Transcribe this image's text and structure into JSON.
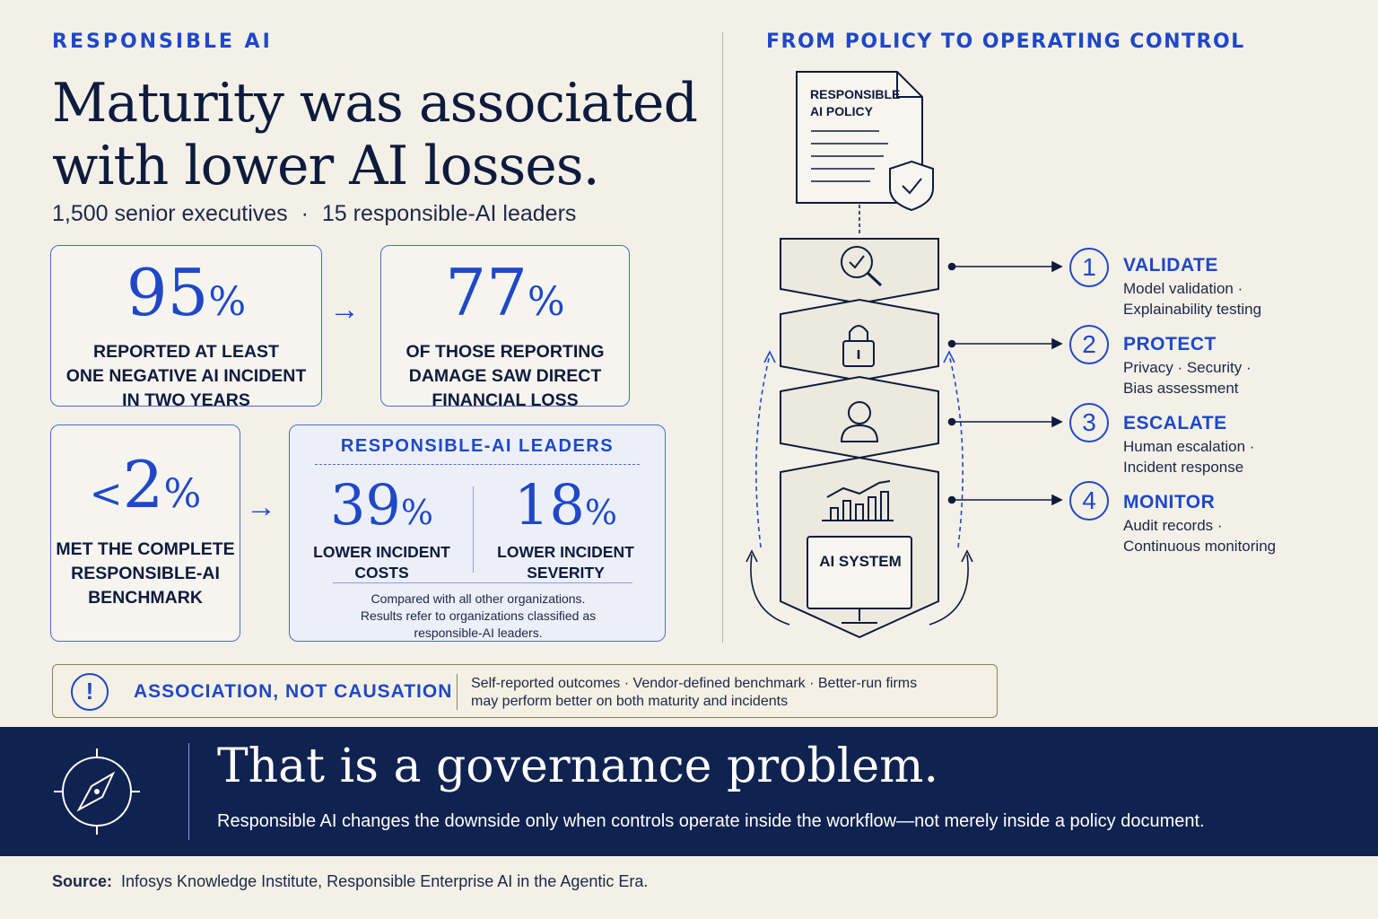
{
  "left": {
    "eyebrow": "RESPONSIBLE AI",
    "headline_line1": "Maturity was associated",
    "headline_line2": "with lower AI losses.",
    "subline_a": "1,500 senior executives",
    "subline_sep": "·",
    "subline_b": "15 responsible-AI leaders"
  },
  "stats": {
    "s1": {
      "value": "95",
      "unit": "%",
      "text_l1": "Reported at least",
      "text_l2": "one negative AI incident",
      "text_l3": "in two years"
    },
    "s2": {
      "value": "77",
      "unit": "%",
      "text_l1": "Of those reporting",
      "text_l2": "damage saw direct",
      "text_l3": "financial loss"
    },
    "s3": {
      "prefix": "<",
      "value": "2",
      "unit": "%",
      "text_l1": "Met the complete",
      "text_l2": "responsible-AI",
      "text_l3": "benchmark"
    }
  },
  "leaders": {
    "title": "RESPONSIBLE-AI LEADERS",
    "a": {
      "value": "39",
      "unit": "%",
      "l1": "Lower incident",
      "l2": "costs"
    },
    "b": {
      "value": "18",
      "unit": "%",
      "l1": "Lower incident",
      "l2": "severity"
    },
    "note_l1": "Compared with all other organizations.",
    "note_l2": "Results refer to organizations classified as",
    "note_l3": "responsible-AI leaders."
  },
  "caution": {
    "icon": "!",
    "title": "ASSOCIATION, NOT CAUSATION",
    "l1": "Self-reported outcomes  ·  Vendor-defined benchmark  ·  Better-run firms",
    "l2": "may perform better on both maturity and incidents"
  },
  "right": {
    "eyebrow": "FROM POLICY TO OPERATING CONTROL",
    "policy_l1": "RESPONSIBLE",
    "policy_l2": "AI POLICY",
    "system_label": "AI SYSTEM",
    "steps": [
      {
        "num": "1",
        "title": "VALIDATE",
        "d1": "Model validation  ·",
        "d2": "Explainability testing",
        "icon": "magnifier-check-icon"
      },
      {
        "num": "2",
        "title": "PROTECT",
        "d1": "Privacy  ·  Security  ·",
        "d2": "Bias assessment",
        "icon": "padlock-icon"
      },
      {
        "num": "3",
        "title": "ESCALATE",
        "d1": "Human escalation  ·",
        "d2": "Incident response",
        "icon": "person-icon"
      },
      {
        "num": "4",
        "title": "MONITOR",
        "d1": "Audit records  ·",
        "d2": "Continuous monitoring",
        "icon": "chart-icon"
      }
    ]
  },
  "banner": {
    "title": "That is a governance problem.",
    "subtitle": "Responsible AI changes the downside only when controls operate inside the workflow—not merely inside a policy document.",
    "icon": "compass-icon"
  },
  "source": {
    "label": "Source:",
    "text": "Infosys Knowledge Institute, Responsible Enterprise AI in the Agentic Era."
  },
  "colors": {
    "accent": "#1e48c8",
    "navy": "#0f2250",
    "paper": "#f3f0e8"
  }
}
